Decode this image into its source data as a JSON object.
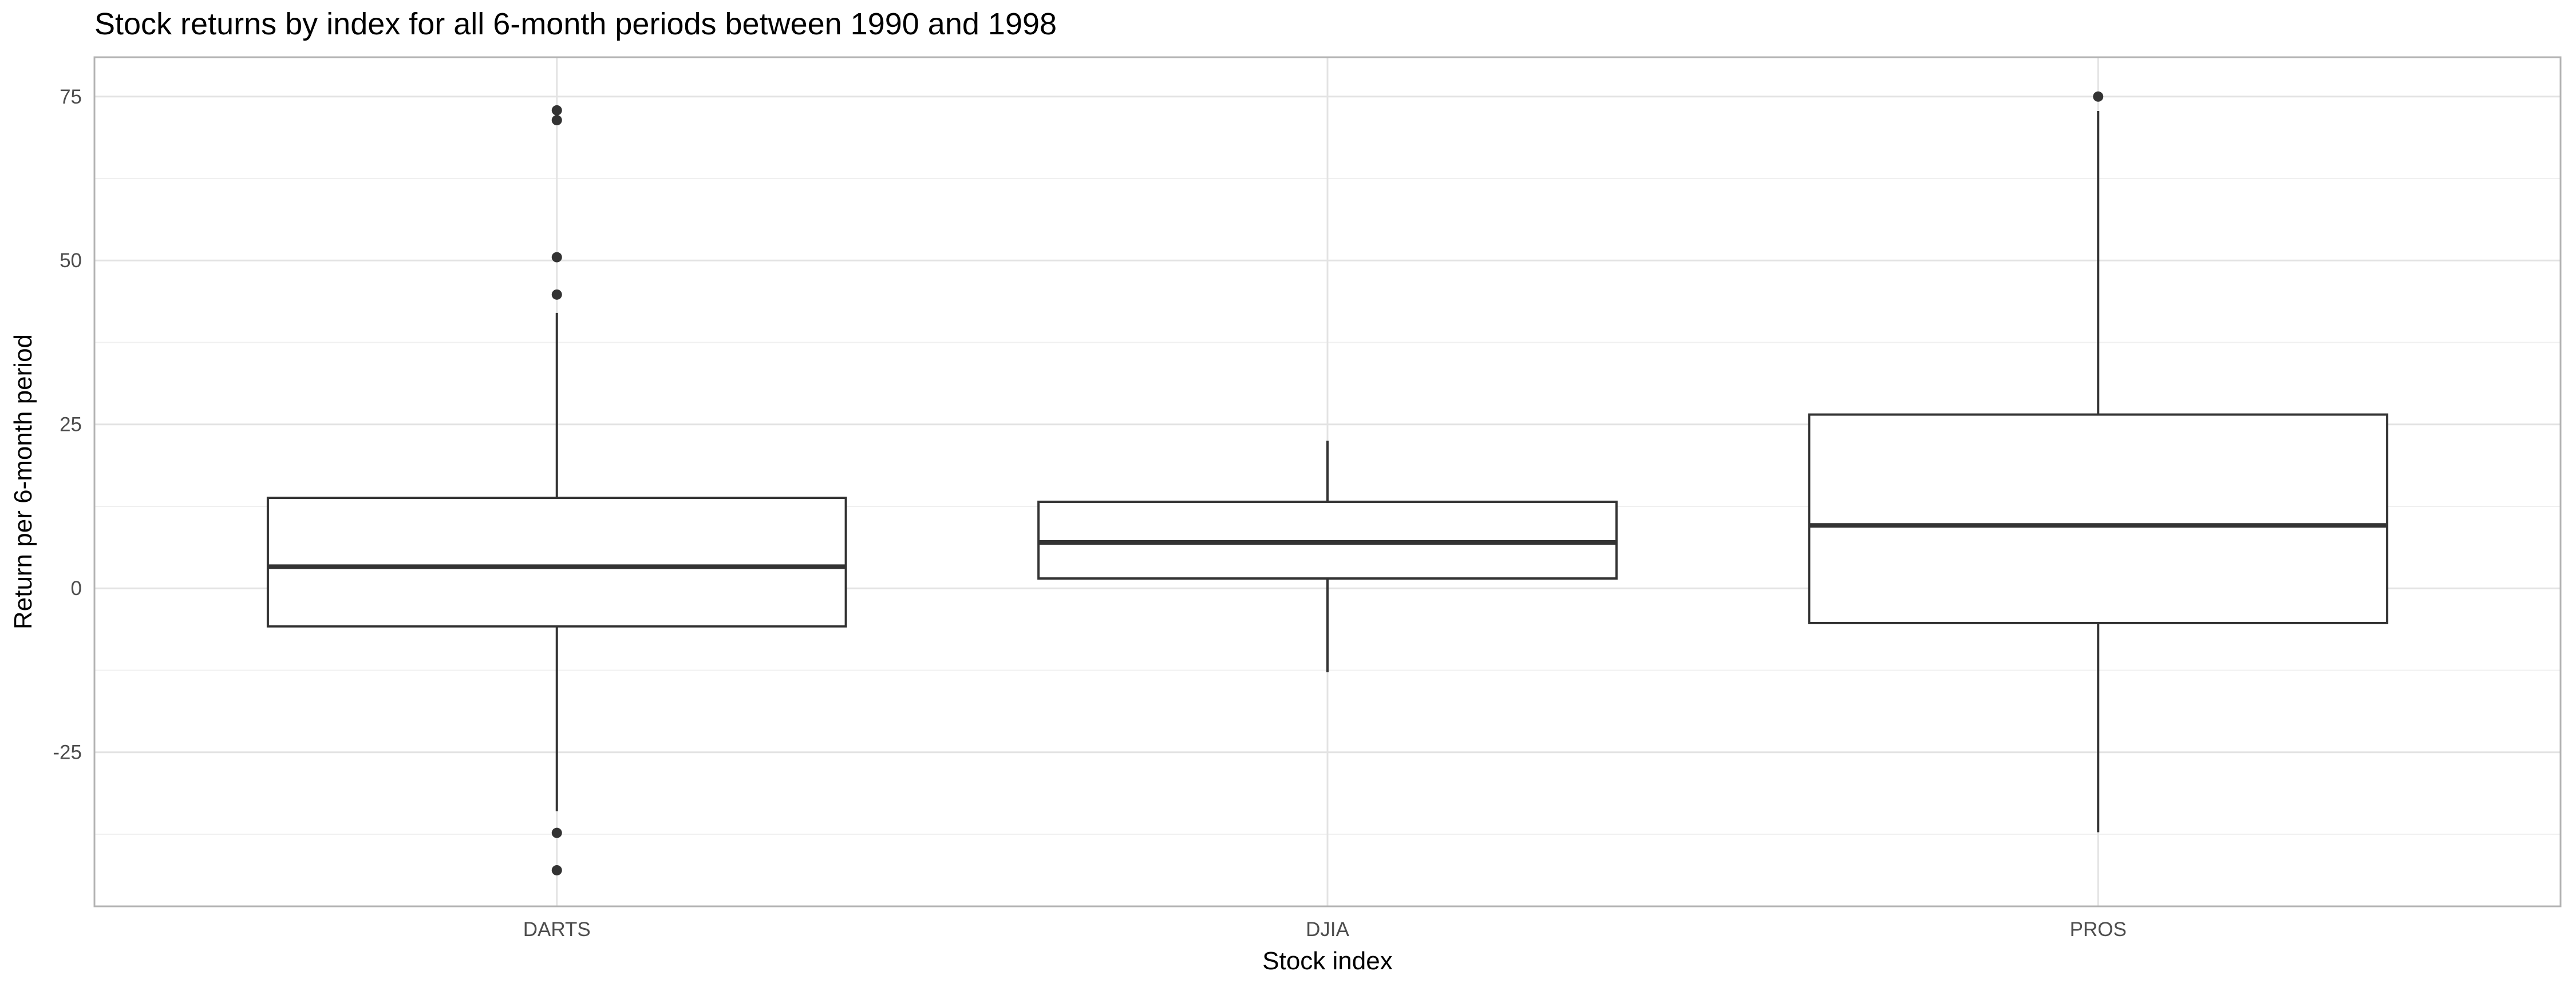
{
  "chart_data": {
    "type": "boxplot",
    "title": "Stock returns by index for all 6-month periods between 1990 and 1998",
    "xlabel": "Stock index",
    "ylabel": "Return per 6-month period",
    "categories": [
      "DARTS",
      "DJIA",
      "PROS"
    ],
    "y_ticks": [
      -25,
      0,
      25,
      50,
      75
    ],
    "y_tick_labels": [
      "-25",
      "0",
      "25",
      "50",
      "75"
    ],
    "ylim": [
      -48.5,
      81
    ],
    "grid": true,
    "legend": "none",
    "boxes": [
      {
        "category": "DARTS",
        "whisker_low": -34,
        "q1": -5.8,
        "median": 3.3,
        "q3": 13.8,
        "whisker_high": 42,
        "outliers": [
          72.9,
          71.4,
          50.5,
          44.8,
          -37.3,
          -43
        ]
      },
      {
        "category": "DJIA",
        "whisker_low": -12.8,
        "q1": 1.5,
        "median": 7,
        "q3": 13.2,
        "whisker_high": 22.5,
        "outliers": []
      },
      {
        "category": "PROS",
        "whisker_low": -37.2,
        "q1": -5.3,
        "median": 9.6,
        "q3": 26.5,
        "whisker_high": 72.8,
        "outliers": [
          75
        ]
      }
    ]
  }
}
